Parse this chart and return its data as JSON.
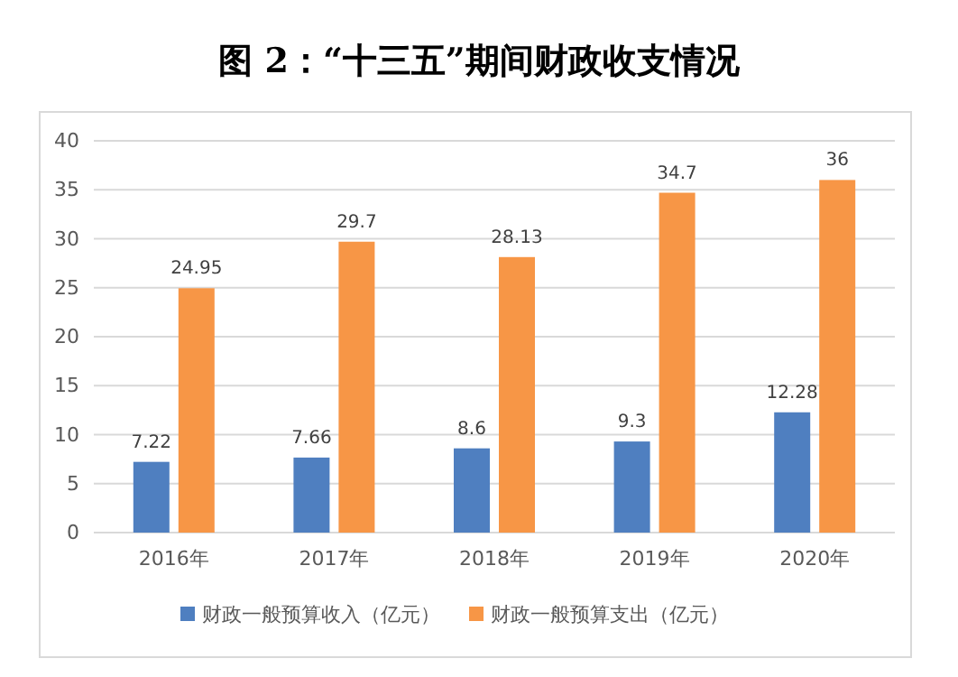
{
  "chart_data": {
    "type": "bar",
    "title": "图 2：“十三五”期间财政收支情况",
    "categories": [
      "2016年",
      "2017年",
      "2018年",
      "2019年",
      "2020年"
    ],
    "series": [
      {
        "name": "财政一般预算收入（亿元）",
        "color": "#4f7fc0",
        "values": [
          7.22,
          7.66,
          8.6,
          9.3,
          12.28
        ]
      },
      {
        "name": "财政一般预算支出（亿元）",
        "color": "#f79646",
        "values": [
          24.95,
          29.7,
          28.13,
          34.7,
          36
        ]
      }
    ],
    "ylim": [
      0,
      40
    ],
    "yticks": [
      0,
      5,
      10,
      15,
      20,
      25,
      30,
      35,
      40
    ],
    "grid": "y",
    "legend": "bottom",
    "data_labels": true
  }
}
